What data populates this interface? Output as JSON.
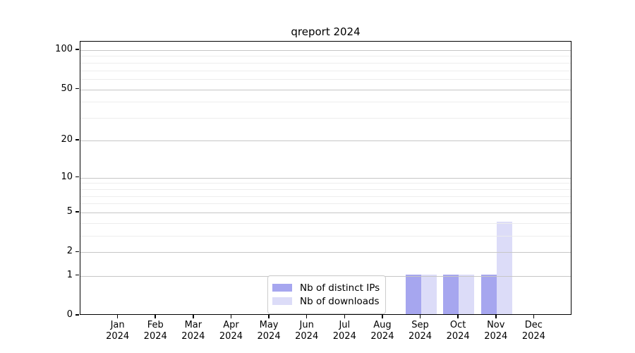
{
  "chart_data": {
    "type": "bar",
    "title": "qreport 2024",
    "categories": [
      {
        "month": "Jan",
        "year": "2024"
      },
      {
        "month": "Feb",
        "year": "2024"
      },
      {
        "month": "Mar",
        "year": "2024"
      },
      {
        "month": "Apr",
        "year": "2024"
      },
      {
        "month": "May",
        "year": "2024"
      },
      {
        "month": "Jun",
        "year": "2024"
      },
      {
        "month": "Jul",
        "year": "2024"
      },
      {
        "month": "Aug",
        "year": "2024"
      },
      {
        "month": "Sep",
        "year": "2024"
      },
      {
        "month": "Oct",
        "year": "2024"
      },
      {
        "month": "Nov",
        "year": "2024"
      },
      {
        "month": "Dec",
        "year": "2024"
      }
    ],
    "series": [
      {
        "name": "Nb of distinct IPs",
        "color": "#a6a6ef",
        "values": [
          0,
          0,
          0,
          0,
          0,
          0,
          0,
          0,
          1,
          1,
          1,
          0
        ]
      },
      {
        "name": "Nb of downloads",
        "color": "#dcdcf8",
        "values": [
          0,
          0,
          0,
          0,
          0,
          0,
          0,
          0,
          1,
          1,
          4,
          0
        ]
      }
    ],
    "xlabel": "",
    "ylabel": "",
    "y_axis": {
      "scale": "log1p",
      "ylim": [
        0,
        116
      ],
      "ticks_major": [
        0,
        1,
        2,
        5,
        10,
        20,
        50,
        100
      ],
      "ticks_minor": [
        3,
        4,
        6,
        7,
        8,
        9,
        30,
        40,
        60,
        70,
        80,
        90
      ]
    },
    "grid": {
      "visible": true,
      "major_color": "#c6c6c6",
      "minor_color": "#ededed",
      "grid_above_bars": true
    },
    "legend": {
      "position": "lower-center-inside",
      "entries": [
        "Nb of distinct IPs",
        "Nb of downloads"
      ]
    }
  }
}
